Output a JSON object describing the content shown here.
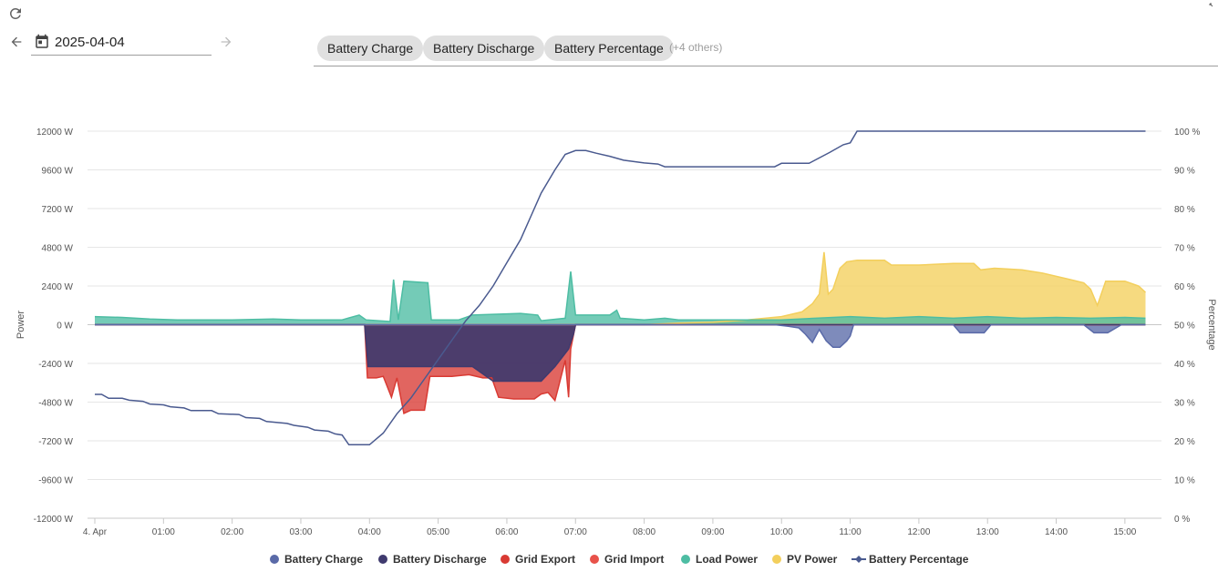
{
  "toolbar": {
    "date_value": "2025-04-04",
    "icons": [
      "refresh-icon",
      "arrow-left-icon",
      "calendar-icon",
      "arrow-right-icon",
      "expand-icon"
    ]
  },
  "chips": {
    "items": [
      "Battery Charge",
      "Battery Discharge",
      "Battery Percentage"
    ],
    "others": "(+4 others)"
  },
  "colors": {
    "battery_charge": "#5a6aa8",
    "battery_discharge": "#3f3a6e",
    "grid_export": "#d93a33",
    "grid_import": "#e8524a",
    "load_power": "#4dbda3",
    "pv_power": "#f3cf5c",
    "battery_percentage": "#4a5a8f"
  },
  "chart_data": {
    "type": "area",
    "x_unit": "time (hours of 2025-04-04)",
    "xlim": [
      0,
      15.4
    ],
    "x_ticks": [
      {
        "label": "4. Apr",
        "h": 0
      },
      {
        "label": "01:00",
        "h": 1
      },
      {
        "label": "02:00",
        "h": 2
      },
      {
        "label": "03:00",
        "h": 3
      },
      {
        "label": "04:00",
        "h": 4
      },
      {
        "label": "05:00",
        "h": 5
      },
      {
        "label": "06:00",
        "h": 6
      },
      {
        "label": "07:00",
        "h": 7
      },
      {
        "label": "08:00",
        "h": 8
      },
      {
        "label": "09:00",
        "h": 9
      },
      {
        "label": "10:00",
        "h": 10
      },
      {
        "label": "11:00",
        "h": 11
      },
      {
        "label": "12:00",
        "h": 12
      },
      {
        "label": "13:00",
        "h": 13
      },
      {
        "label": "14:00",
        "h": 14
      },
      {
        "label": "15:00",
        "h": 15
      }
    ],
    "y_left": {
      "label": "Power",
      "ylim": [
        -12000,
        12000
      ],
      "ticks": [
        {
          "v": 12000,
          "label": "12000 W"
        },
        {
          "v": 9600,
          "label": "9600 W"
        },
        {
          "v": 7200,
          "label": "7200 W"
        },
        {
          "v": 4800,
          "label": "4800 W"
        },
        {
          "v": 2400,
          "label": "2400 W"
        },
        {
          "v": 0,
          "label": "0 W"
        },
        {
          "v": -2400,
          "label": "-2400 W"
        },
        {
          "v": -4800,
          "label": "-4800 W"
        },
        {
          "v": -7200,
          "label": "-7200 W"
        },
        {
          "v": -9600,
          "label": "-9600 W"
        },
        {
          "v": -12000,
          "label": "-12000 W"
        }
      ]
    },
    "y_right": {
      "label": "Percentage",
      "ylim": [
        0,
        100
      ],
      "ticks": [
        {
          "v": 100,
          "label": "100 %"
        },
        {
          "v": 90,
          "label": "90 %"
        },
        {
          "v": 80,
          "label": "80 %"
        },
        {
          "v": 70,
          "label": "70 %"
        },
        {
          "v": 60,
          "label": "60 %"
        },
        {
          "v": 50,
          "label": "50 %"
        },
        {
          "v": 40,
          "label": "40 %"
        },
        {
          "v": 30,
          "label": "30 %"
        },
        {
          "v": 20,
          "label": "20 %"
        },
        {
          "v": 10,
          "label": "10 %"
        },
        {
          "v": 0,
          "label": "0 %"
        }
      ]
    },
    "grid": true,
    "legend_position": "bottom-center",
    "legend": [
      "Battery Charge",
      "Battery Discharge",
      "Grid Export",
      "Grid Import",
      "Load Power",
      "PV Power",
      "Battery Percentage"
    ],
    "series": [
      {
        "name": "Battery Charge",
        "axis": "left",
        "kind": "area",
        "color_key": "battery_charge",
        "points": [
          [
            0,
            0
          ],
          [
            9.9,
            0
          ],
          [
            10.1,
            -100
          ],
          [
            10.25,
            -200
          ],
          [
            10.35,
            -600
          ],
          [
            10.45,
            -1100
          ],
          [
            10.55,
            -300
          ],
          [
            10.65,
            -1000
          ],
          [
            10.75,
            -1400
          ],
          [
            10.85,
            -1400
          ],
          [
            10.95,
            -1000
          ],
          [
            11.0,
            -700
          ],
          [
            11.05,
            0
          ],
          [
            12.5,
            0
          ],
          [
            12.6,
            -500
          ],
          [
            12.95,
            -500
          ],
          [
            13.05,
            0
          ],
          [
            14.4,
            0
          ],
          [
            14.55,
            -500
          ],
          [
            14.75,
            -500
          ],
          [
            14.95,
            0
          ],
          [
            15.3,
            0
          ]
        ]
      },
      {
        "name": "Battery Discharge",
        "axis": "left",
        "kind": "area",
        "color_key": "battery_discharge",
        "points": [
          [
            0,
            0
          ],
          [
            3.93,
            0
          ],
          [
            3.98,
            -2600
          ],
          [
            4.3,
            -2600
          ],
          [
            5.0,
            -2600
          ],
          [
            5.5,
            -2600
          ],
          [
            5.8,
            -3500
          ],
          [
            6.5,
            -3500
          ],
          [
            6.7,
            -2600
          ],
          [
            6.9,
            -1500
          ],
          [
            6.97,
            -600
          ],
          [
            7.0,
            0
          ],
          [
            15.3,
            0
          ]
        ]
      },
      {
        "name": "Grid Export",
        "axis": "left",
        "kind": "area",
        "color_key": "grid_export",
        "points": [
          [
            0,
            0
          ],
          [
            3.93,
            0
          ],
          [
            3.97,
            -3300
          ],
          [
            4.1,
            -3300
          ],
          [
            4.2,
            -3200
          ],
          [
            4.32,
            -4500
          ],
          [
            4.4,
            -3300
          ],
          [
            4.5,
            -5500
          ],
          [
            4.6,
            -5300
          ],
          [
            4.8,
            -5300
          ],
          [
            4.88,
            -3200
          ],
          [
            5.2,
            -3200
          ],
          [
            5.45,
            -3100
          ],
          [
            5.65,
            -3300
          ],
          [
            5.78,
            -3300
          ],
          [
            5.88,
            -4500
          ],
          [
            6.1,
            -4600
          ],
          [
            6.4,
            -4600
          ],
          [
            6.5,
            -4300
          ],
          [
            6.6,
            -4200
          ],
          [
            6.7,
            -4700
          ],
          [
            6.75,
            -3900
          ],
          [
            6.85,
            -2200
          ],
          [
            6.9,
            -4500
          ],
          [
            6.93,
            -1500
          ],
          [
            7.0,
            0
          ],
          [
            15.3,
            0
          ]
        ]
      },
      {
        "name": "Grid Import",
        "axis": "left",
        "kind": "area",
        "color_key": "grid_import",
        "points": [
          [
            0,
            0
          ],
          [
            15.3,
            0
          ]
        ]
      },
      {
        "name": "Load Power",
        "axis": "left",
        "kind": "area",
        "color_key": "load_power",
        "points": [
          [
            0,
            500
          ],
          [
            0.4,
            450
          ],
          [
            0.6,
            400
          ],
          [
            0.8,
            350
          ],
          [
            1.2,
            300
          ],
          [
            2.0,
            300
          ],
          [
            2.6,
            350
          ],
          [
            3.0,
            300
          ],
          [
            3.6,
            300
          ],
          [
            3.85,
            600
          ],
          [
            3.95,
            300
          ],
          [
            4.3,
            200
          ],
          [
            4.35,
            2800
          ],
          [
            4.42,
            300
          ],
          [
            4.5,
            2700
          ],
          [
            4.85,
            2600
          ],
          [
            4.9,
            300
          ],
          [
            5.3,
            300
          ],
          [
            5.5,
            600
          ],
          [
            6.2,
            700
          ],
          [
            6.45,
            600
          ],
          [
            6.5,
            250
          ],
          [
            6.85,
            400
          ],
          [
            6.93,
            3300
          ],
          [
            7.0,
            600
          ],
          [
            7.5,
            600
          ],
          [
            7.6,
            900
          ],
          [
            7.65,
            400
          ],
          [
            8.0,
            300
          ],
          [
            8.3,
            400
          ],
          [
            8.5,
            300
          ],
          [
            9.2,
            300
          ],
          [
            10.0,
            300
          ],
          [
            10.5,
            400
          ],
          [
            11.0,
            500
          ],
          [
            11.5,
            400
          ],
          [
            12.0,
            500
          ],
          [
            12.5,
            400
          ],
          [
            13.0,
            500
          ],
          [
            13.5,
            400
          ],
          [
            14.0,
            450
          ],
          [
            14.5,
            400
          ],
          [
            15.0,
            450
          ],
          [
            15.3,
            400
          ]
        ]
      },
      {
        "name": "PV Power",
        "axis": "left",
        "kind": "area",
        "color_key": "pv_power",
        "points": [
          [
            0,
            0
          ],
          [
            8.0,
            0
          ],
          [
            8.5,
            100
          ],
          [
            9.0,
            150
          ],
          [
            9.5,
            300
          ],
          [
            10.0,
            500
          ],
          [
            10.3,
            800
          ],
          [
            10.45,
            1300
          ],
          [
            10.55,
            1900
          ],
          [
            10.62,
            4500
          ],
          [
            10.68,
            1900
          ],
          [
            10.75,
            2200
          ],
          [
            10.85,
            3500
          ],
          [
            10.95,
            3900
          ],
          [
            11.1,
            4000
          ],
          [
            11.5,
            4000
          ],
          [
            11.6,
            3700
          ],
          [
            12.0,
            3700
          ],
          [
            12.5,
            3800
          ],
          [
            12.8,
            3800
          ],
          [
            12.9,
            3400
          ],
          [
            13.1,
            3500
          ],
          [
            13.5,
            3400
          ],
          [
            13.8,
            3200
          ],
          [
            14.0,
            3000
          ],
          [
            14.2,
            2800
          ],
          [
            14.4,
            2600
          ],
          [
            14.5,
            2200
          ],
          [
            14.6,
            1200
          ],
          [
            14.72,
            2700
          ],
          [
            15.0,
            2700
          ],
          [
            15.2,
            2400
          ],
          [
            15.3,
            2000
          ]
        ]
      },
      {
        "name": "Battery Percentage",
        "axis": "right",
        "kind": "line",
        "color_key": "battery_percentage",
        "points": [
          [
            0,
            32
          ],
          [
            0.1,
            32
          ],
          [
            0.2,
            31
          ],
          [
            0.4,
            31
          ],
          [
            0.5,
            30.5
          ],
          [
            0.7,
            30.2
          ],
          [
            0.8,
            29.5
          ],
          [
            1.0,
            29.3
          ],
          [
            1.1,
            28.8
          ],
          [
            1.3,
            28.5
          ],
          [
            1.4,
            27.8
          ],
          [
            1.7,
            27.8
          ],
          [
            1.8,
            27
          ],
          [
            2.1,
            26.8
          ],
          [
            2.2,
            26
          ],
          [
            2.4,
            25.8
          ],
          [
            2.5,
            25
          ],
          [
            2.8,
            24.5
          ],
          [
            2.9,
            24
          ],
          [
            3.1,
            23.5
          ],
          [
            3.2,
            22.8
          ],
          [
            3.4,
            22.5
          ],
          [
            3.5,
            21.8
          ],
          [
            3.6,
            21.5
          ],
          [
            3.7,
            19
          ],
          [
            3.9,
            19
          ],
          [
            4.0,
            19
          ],
          [
            4.2,
            22
          ],
          [
            4.4,
            27
          ],
          [
            4.6,
            31
          ],
          [
            4.8,
            36
          ],
          [
            5.0,
            41
          ],
          [
            5.2,
            46
          ],
          [
            5.4,
            51
          ],
          [
            5.6,
            55
          ],
          [
            5.8,
            60
          ],
          [
            6.0,
            66
          ],
          [
            6.2,
            72
          ],
          [
            6.35,
            78
          ],
          [
            6.5,
            84
          ],
          [
            6.7,
            90
          ],
          [
            6.85,
            94
          ],
          [
            7.0,
            95
          ],
          [
            7.15,
            95
          ],
          [
            7.3,
            94.3
          ],
          [
            7.5,
            93.5
          ],
          [
            7.7,
            92.5
          ],
          [
            8.0,
            91.8
          ],
          [
            8.2,
            91.5
          ],
          [
            8.3,
            90.8
          ],
          [
            9.0,
            90.8
          ],
          [
            9.9,
            90.8
          ],
          [
            10.0,
            91.7
          ],
          [
            10.3,
            91.7
          ],
          [
            10.4,
            91.7
          ],
          [
            10.7,
            94.5
          ],
          [
            10.9,
            96.5
          ],
          [
            11.0,
            97
          ],
          [
            11.1,
            100
          ],
          [
            15.3,
            100
          ]
        ]
      }
    ]
  }
}
